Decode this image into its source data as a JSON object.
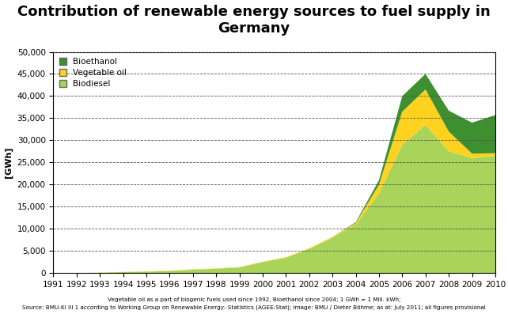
{
  "chart_data": {
    "type": "area",
    "stacked": true,
    "title": "Contribution of renewable energy sources to fuel supply in Germany",
    "y_label": "[GWh]",
    "x": [
      1991,
      1992,
      1993,
      1994,
      1995,
      1996,
      1997,
      1998,
      1999,
      2000,
      2001,
      2002,
      2003,
      2004,
      2005,
      2006,
      2007,
      2008,
      2009,
      2010
    ],
    "series": [
      {
        "name": "Biodiesel",
        "color": "#a8d45a",
        "values": [
          0,
          0,
          100,
          250,
          350,
          500,
          800,
          1000,
          1300,
          2500,
          3500,
          5500,
          8000,
          11000,
          18000,
          29000,
          33500,
          27500,
          26000,
          26500
        ]
      },
      {
        "name": "Vegetable oil",
        "color": "#ffd21f",
        "values": [
          0,
          20,
          30,
          40,
          50,
          60,
          70,
          80,
          90,
          100,
          120,
          150,
          200,
          300,
          2000,
          7500,
          8000,
          4500,
          1000,
          600
        ]
      },
      {
        "name": "Bioethanol",
        "color": "#3d8f2f",
        "values": [
          0,
          0,
          0,
          0,
          0,
          0,
          0,
          0,
          0,
          0,
          0,
          0,
          0,
          200,
          1000,
          3500,
          3500,
          4700,
          7000,
          8600
        ]
      }
    ],
    "xlim": [
      1991,
      2010
    ],
    "xticks": [
      1991,
      1992,
      1993,
      1994,
      1995,
      1996,
      1997,
      1998,
      1999,
      2000,
      2001,
      2002,
      2003,
      2004,
      2005,
      2006,
      2007,
      2008,
      2009,
      2010
    ],
    "ylim": [
      0,
      50000
    ],
    "yticks": [
      0,
      {
        "value": 5000,
        "label": "5,000"
      },
      {
        "value": 10000,
        "label": "10,000"
      },
      {
        "value": 15000,
        "label": "15,000"
      },
      {
        "value": 20000,
        "label": "20,000"
      },
      {
        "value": 25000,
        "label": "25,000"
      },
      {
        "value": 30000,
        "label": "30,000"
      },
      {
        "value": 35000,
        "label": "35,000"
      },
      {
        "value": 40000,
        "label": "40,000"
      },
      {
        "value": 45000,
        "label": "45,000"
      },
      {
        "value": 50000,
        "label": "50,000"
      }
    ],
    "grid": true,
    "legend": "upper left",
    "annotations": [
      "Vegetable oil as a part of biogenic fuels used since 1992, Bioethanol since 2004; 1 GWh = 1 Mill. kWh;",
      "Source: BMU-KI III 1 according to Working Group on Renewable Energy- Statistics (AGEE-Stat); Image: BMU / Dieter Böhme; as at: July 2011; all figures provisional"
    ]
  }
}
